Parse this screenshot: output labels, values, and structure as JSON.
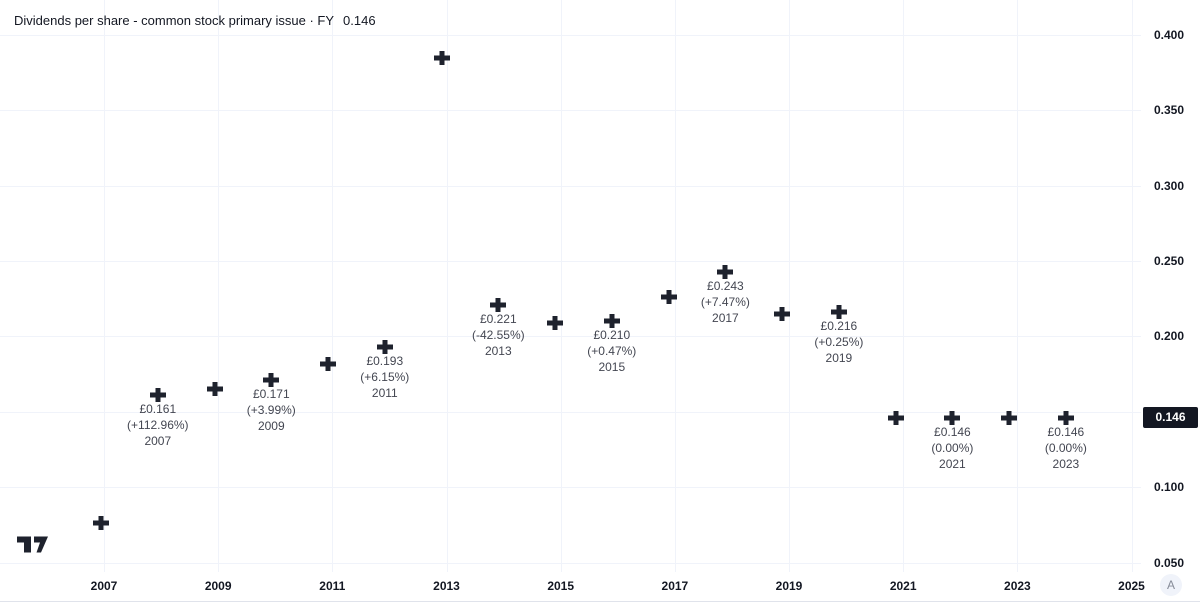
{
  "header": {
    "series_title": "Dividends per share - common stock primary issue · FY",
    "series_value": "0.146"
  },
  "chart_data": {
    "type": "scatter",
    "title": "Dividends per share - common stock primary issue",
    "period": "FY",
    "currency": "£",
    "marker_shape": "plus",
    "grid": true,
    "legend_position": "top-left",
    "x_axis": {
      "ticks": [
        "2007",
        "2009",
        "2011",
        "2013",
        "2015",
        "2017",
        "2019",
        "2021",
        "2023",
        "2025"
      ]
    },
    "y_axis": {
      "ticks": [
        "0.400",
        "0.350",
        "0.300",
        "0.250",
        "0.200",
        "0.150",
        "0.100",
        "0.050"
      ],
      "visible_range": [
        0.024,
        0.423
      ],
      "current_value_badge": "0.146"
    },
    "points": [
      {
        "year": 2006,
        "value": 0.076,
        "label": null
      },
      {
        "year": 2007,
        "value": 0.161,
        "label": [
          "£0.161",
          "(+112.96%)",
          "2007"
        ]
      },
      {
        "year": 2008,
        "value": 0.165,
        "label": null
      },
      {
        "year": 2009,
        "value": 0.171,
        "label": [
          "£0.171",
          "(+3.99%)",
          "2009"
        ]
      },
      {
        "year": 2010,
        "value": 0.182,
        "label": null
      },
      {
        "year": 2011,
        "value": 0.193,
        "label": [
          "£0.193",
          "(+6.15%)",
          "2011"
        ]
      },
      {
        "year": 2012,
        "value": 0.385,
        "label": null
      },
      {
        "year": 2013,
        "value": 0.221,
        "label": [
          "£0.221",
          "(-42.55%)",
          "2013"
        ]
      },
      {
        "year": 2014,
        "value": 0.209,
        "label": null
      },
      {
        "year": 2015,
        "value": 0.21,
        "label": [
          "£0.210",
          "(+0.47%)",
          "2015"
        ]
      },
      {
        "year": 2016,
        "value": 0.226,
        "label": null
      },
      {
        "year": 2017,
        "value": 0.243,
        "label": [
          "£0.243",
          "(+7.47%)",
          "2017"
        ]
      },
      {
        "year": 2018,
        "value": 0.215,
        "label": null
      },
      {
        "year": 2019,
        "value": 0.216,
        "label": [
          "£0.216",
          "(+0.25%)",
          "2019"
        ]
      },
      {
        "year": 2020,
        "value": 0.146,
        "label": null
      },
      {
        "year": 2021,
        "value": 0.146,
        "label": [
          "£0.146",
          "(0.00%)",
          "2021"
        ]
      },
      {
        "year": 2022,
        "value": 0.146,
        "label": null
      },
      {
        "year": 2023,
        "value": 0.146,
        "label": [
          "£0.146",
          "(0.00%)",
          "2023"
        ]
      }
    ]
  },
  "axis_controls": {
    "auto_button": "A"
  },
  "colors": {
    "background": "#ffffff",
    "grid": "#f0f3fa",
    "marker": "#1e222d",
    "axis_text": "#131722",
    "label_text": "#434651",
    "badge_bg": "#131722",
    "badge_text": "#ffffff",
    "separator": "#e0e3eb",
    "logo": "#1e222d",
    "auto_button_bg": "#f0f3fa",
    "auto_button_text": "#868b98"
  }
}
